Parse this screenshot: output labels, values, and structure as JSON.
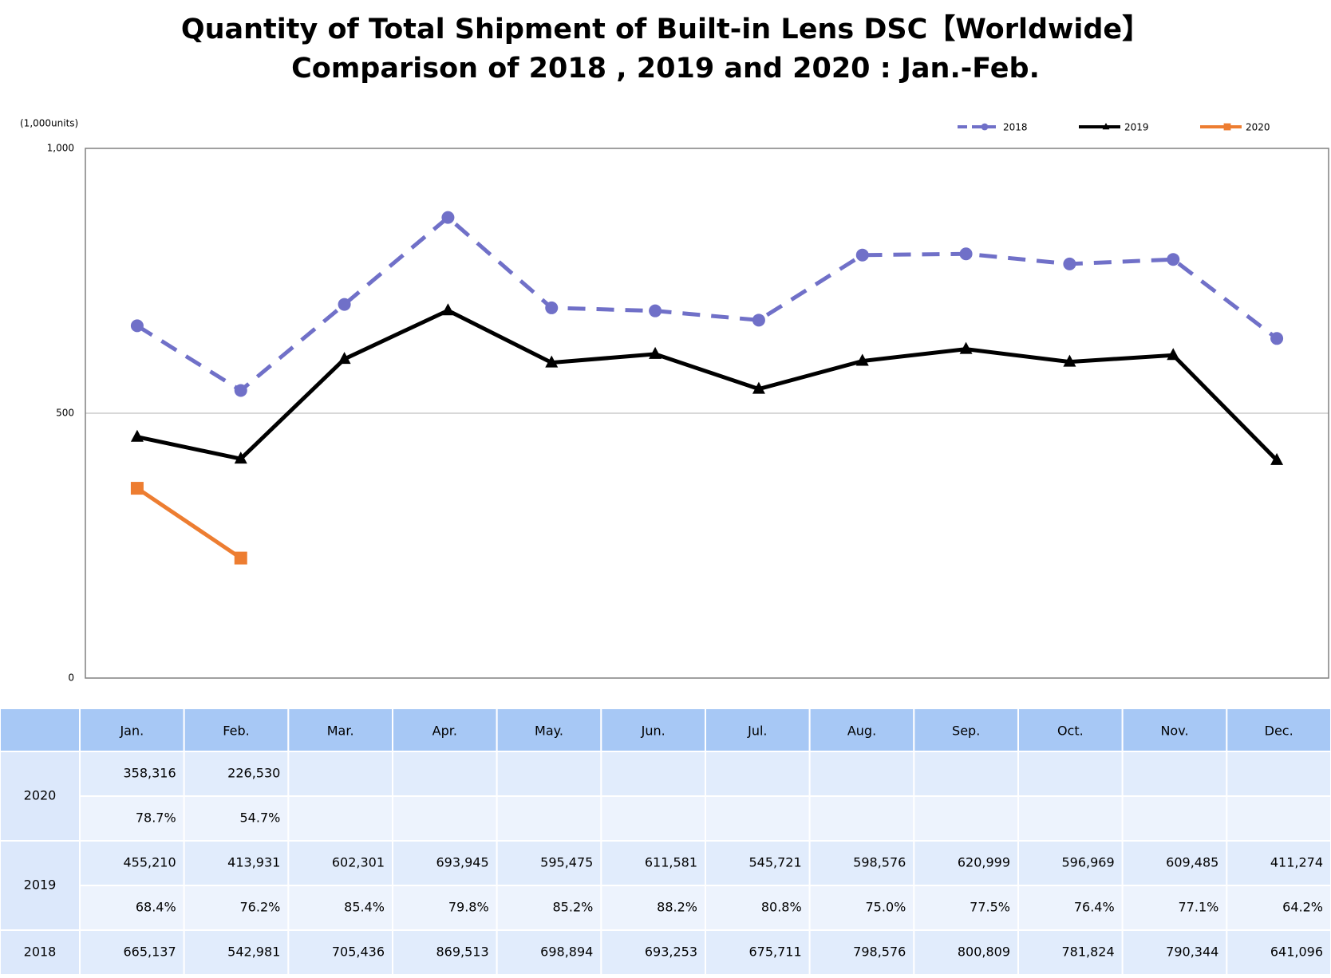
{
  "chart_data": {
    "type": "line",
    "title": "Quantity of Total Shipment of Built-in Lens DSC【Worldwide】",
    "subtitle": "Comparison of 2018 , 2019 and 2020 : Jan.-Feb.",
    "y_label": "(1,000units)",
    "categories": [
      "Jan.",
      "Feb.",
      "Mar.",
      "Apr.",
      "May.",
      "Jun.",
      "Jul.",
      "Aug.",
      "Sep.",
      "Oct.",
      "Nov.",
      "Dec."
    ],
    "ylim": [
      0,
      1000
    ],
    "yticks": [
      0,
      500,
      {
        "value": 1000,
        "label": "1,000"
      }
    ],
    "grid": true,
    "legend": "top-right",
    "series": [
      {
        "name": "2018",
        "color": "#7070c8",
        "dash": true,
        "marker": "circle",
        "values": [
          665.137,
          542.981,
          705.436,
          869.513,
          698.894,
          693.253,
          675.711,
          798.576,
          800.809,
          781.824,
          790.344,
          641.096
        ],
        "value_labels": [
          "665,137",
          "542,981",
          "705,436",
          "869,513",
          "698,894",
          "693,253",
          "675,711",
          "798,576",
          "800,809",
          "781,824",
          "790,344",
          "641,096"
        ]
      },
      {
        "name": "2019",
        "color": "#000000",
        "dash": false,
        "marker": "triangle",
        "values": [
          455.21,
          413.931,
          602.301,
          693.945,
          595.475,
          611.581,
          545.721,
          598.576,
          620.999,
          596.969,
          609.485,
          411.274
        ],
        "value_labels": [
          "455,210",
          "413,931",
          "602,301",
          "693,945",
          "595,475",
          "611,581",
          "545,721",
          "598,576",
          "620,999",
          "596,969",
          "609,485",
          "411,274"
        ],
        "ratios": [
          "68.4%",
          "76.2%",
          "85.4%",
          "79.8%",
          "85.2%",
          "88.2%",
          "80.8%",
          "75.0%",
          "77.5%",
          "76.4%",
          "77.1%",
          "64.2%"
        ]
      },
      {
        "name": "2020",
        "color": "#ed7d31",
        "dash": false,
        "marker": "square",
        "values": [
          358.316,
          226.53,
          null,
          null,
          null,
          null,
          null,
          null,
          null,
          null,
          null,
          null
        ],
        "value_labels": [
          "358,316",
          "226,530",
          null,
          null,
          null,
          null,
          null,
          null,
          null,
          null,
          null,
          null
        ],
        "ratios": [
          "78.7%",
          "54.7%",
          null,
          null,
          null,
          null,
          null,
          null,
          null,
          null,
          null,
          null
        ]
      }
    ]
  }
}
